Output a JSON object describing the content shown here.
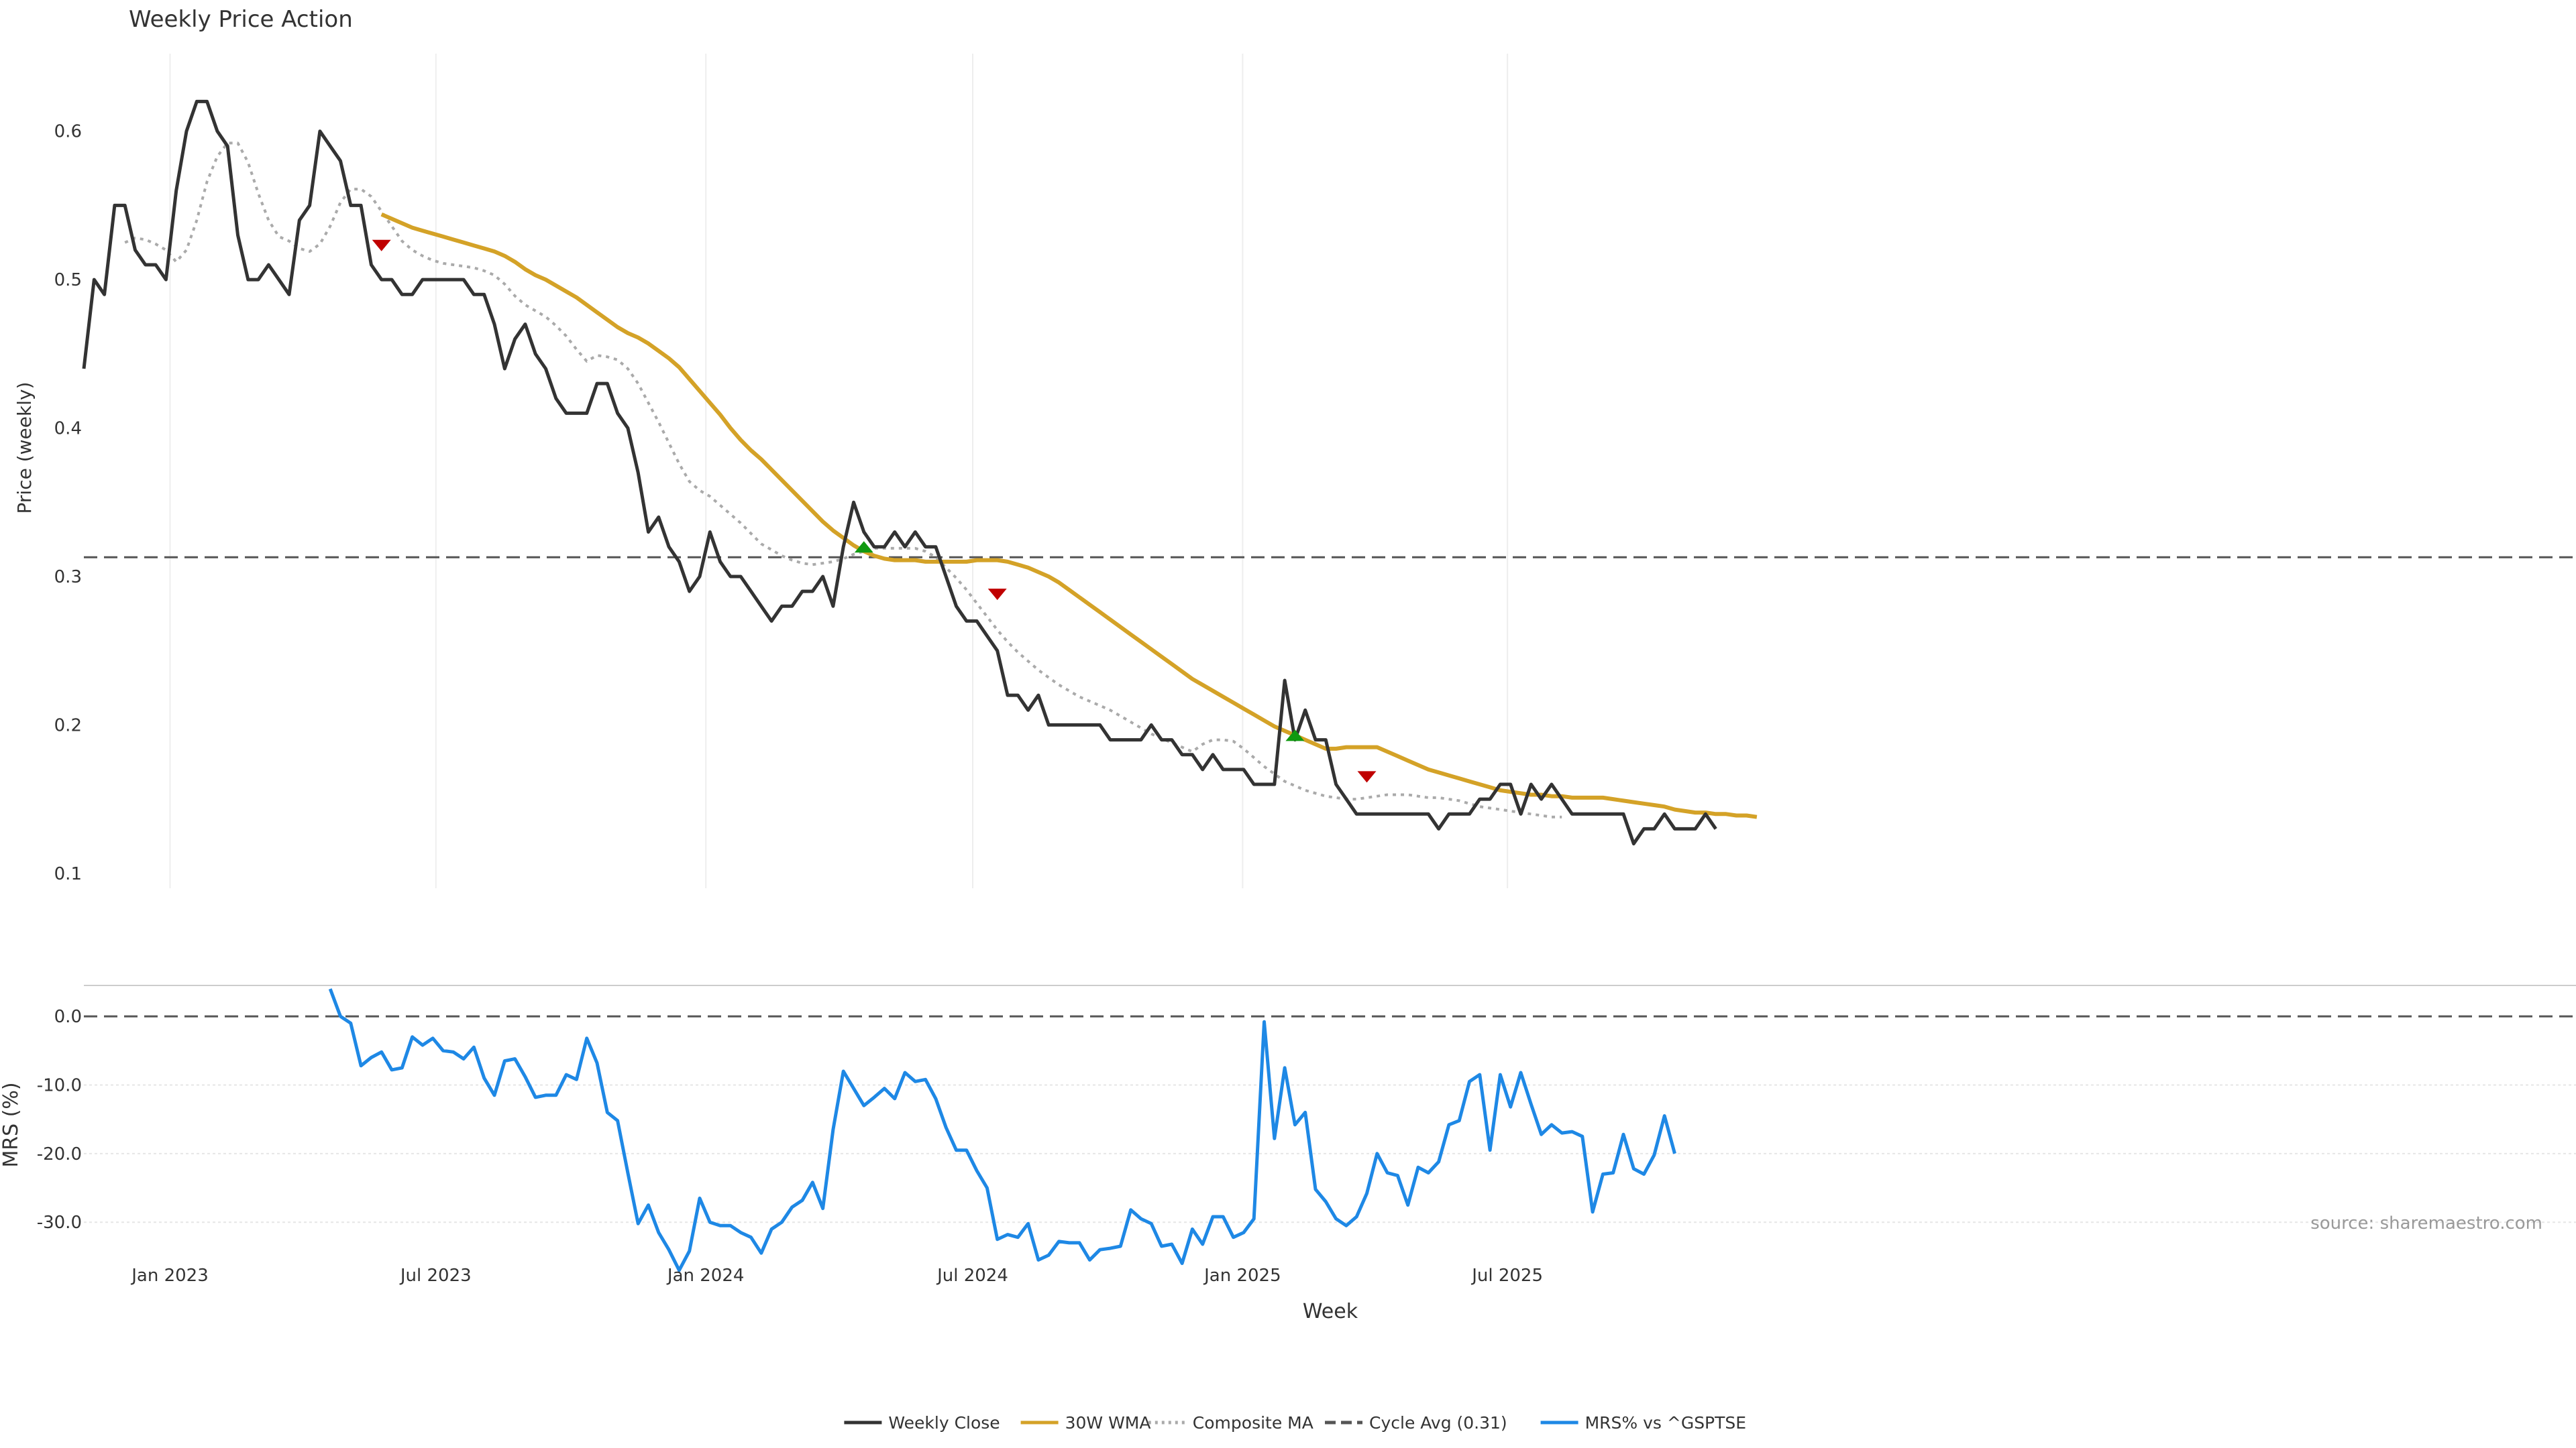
{
  "chart_data": [
    {
      "type": "line",
      "title": "Weekly Price Action",
      "ylabel": "Price (weekly)",
      "xlabel": "",
      "ylim": [
        0.09,
        0.65
      ],
      "yticks": [
        0.1,
        0.2,
        0.3,
        0.4,
        0.5,
        0.6
      ],
      "x_start": "2022-11-07",
      "x_step_days": 7,
      "reference_line": {
        "name": "Cycle Avg (0.31)",
        "value": 0.313,
        "color": "#555555",
        "style": "dashed"
      },
      "series": [
        {
          "name": "Weekly Close",
          "color": "#333333",
          "style": "solid",
          "start_index": 0,
          "values": [
            0.44,
            0.5,
            0.49,
            0.55,
            0.55,
            0.52,
            0.51,
            0.51,
            0.5,
            0.56,
            0.6,
            0.62,
            0.62,
            0.6,
            0.59,
            0.53,
            0.5,
            0.5,
            0.51,
            0.5,
            0.49,
            0.54,
            0.55,
            0.6,
            0.59,
            0.58,
            0.55,
            0.55,
            0.51,
            0.5,
            0.5,
            0.49,
            0.49,
            0.5,
            0.5,
            0.5,
            0.5,
            0.5,
            0.49,
            0.49,
            0.47,
            0.44,
            0.46,
            0.47,
            0.45,
            0.44,
            0.42,
            0.41,
            0.41,
            0.41,
            0.43,
            0.43,
            0.41,
            0.4,
            0.37,
            0.33,
            0.34,
            0.32,
            0.31,
            0.29,
            0.3,
            0.33,
            0.31,
            0.3,
            0.3,
            0.29,
            0.28,
            0.27,
            0.28,
            0.28,
            0.29,
            0.29,
            0.3,
            0.28,
            0.32,
            0.35,
            0.33,
            0.32,
            0.32,
            0.33,
            0.32,
            0.33,
            0.32,
            0.32,
            0.3,
            0.28,
            0.27,
            0.27,
            0.26,
            0.25,
            0.22,
            0.22,
            0.21,
            0.22,
            0.2,
            0.2,
            0.2,
            0.2,
            0.2,
            0.2,
            0.19,
            0.19,
            0.19,
            0.19,
            0.2,
            0.19,
            0.19,
            0.18,
            0.18,
            0.17,
            0.18,
            0.17,
            0.17,
            0.17,
            0.16,
            0.16,
            0.16,
            0.23,
            0.19,
            0.21,
            0.19,
            0.19,
            0.16,
            0.15,
            0.14,
            0.14,
            0.14,
            0.14,
            0.14,
            0.14,
            0.14,
            0.14,
            0.13,
            0.14,
            0.14,
            0.14,
            0.15,
            0.15,
            0.16,
            0.16,
            0.14,
            0.16,
            0.15,
            0.16,
            0.15,
            0.14,
            0.14,
            0.14,
            0.14,
            0.14,
            0.14,
            0.12,
            0.13,
            0.13,
            0.14,
            0.13,
            0.13,
            0.13,
            0.14,
            0.13
          ]
        },
        {
          "name": "30W WMA",
          "color": "#D4A227",
          "style": "solid",
          "start_index": 29,
          "values": [
            0.544,
            0.541,
            0.538,
            0.535,
            0.533,
            0.531,
            0.529,
            0.527,
            0.525,
            0.523,
            0.521,
            0.519,
            0.516,
            0.512,
            0.507,
            0.503,
            0.5,
            0.496,
            0.492,
            0.488,
            0.483,
            0.478,
            0.473,
            0.468,
            0.464,
            0.461,
            0.457,
            0.452,
            0.447,
            0.441,
            0.433,
            0.425,
            0.417,
            0.409,
            0.4,
            0.392,
            0.385,
            0.379,
            0.372,
            0.365,
            0.358,
            0.351,
            0.344,
            0.337,
            0.331,
            0.326,
            0.321,
            0.317,
            0.314,
            0.312,
            0.311,
            0.311,
            0.311,
            0.31,
            0.31,
            0.31,
            0.31,
            0.31,
            0.311,
            0.311,
            0.311,
            0.31,
            0.308,
            0.306,
            0.303,
            0.3,
            0.296,
            0.291,
            0.286,
            0.281,
            0.276,
            0.271,
            0.266,
            0.261,
            0.256,
            0.251,
            0.246,
            0.241,
            0.236,
            0.231,
            0.227,
            0.223,
            0.219,
            0.215,
            0.211,
            0.207,
            0.203,
            0.199,
            0.196,
            0.193,
            0.19,
            0.187,
            0.184,
            0.184,
            0.185,
            0.185,
            0.185,
            0.185,
            0.182,
            0.179,
            0.176,
            0.173,
            0.17,
            0.168,
            0.166,
            0.164,
            0.162,
            0.16,
            0.158,
            0.156,
            0.155,
            0.154,
            0.153,
            0.153,
            0.152,
            0.152,
            0.151,
            0.151,
            0.151,
            0.151,
            0.15,
            0.149,
            0.148,
            0.147,
            0.146,
            0.145,
            0.143,
            0.142,
            0.141,
            0.141,
            0.14,
            0.14,
            0.139,
            0.139,
            0.138
          ]
        },
        {
          "name": "Composite MA",
          "color": "#AAAAAA",
          "style": "dotted",
          "start_index": 4,
          "values": [
            0.525,
            0.528,
            0.527,
            0.524,
            0.52,
            0.512,
            0.52,
            0.54,
            0.566,
            0.583,
            0.592,
            0.592,
            0.579,
            0.558,
            0.54,
            0.529,
            0.526,
            0.521,
            0.519,
            0.524,
            0.536,
            0.552,
            0.561,
            0.561,
            0.556,
            0.546,
            0.536,
            0.526,
            0.52,
            0.516,
            0.513,
            0.511,
            0.51,
            0.509,
            0.508,
            0.506,
            0.503,
            0.497,
            0.489,
            0.483,
            0.479,
            0.475,
            0.469,
            0.462,
            0.453,
            0.445,
            0.449,
            0.448,
            0.446,
            0.44,
            0.43,
            0.417,
            0.404,
            0.39,
            0.376,
            0.364,
            0.358,
            0.354,
            0.348,
            0.342,
            0.336,
            0.329,
            0.322,
            0.318,
            0.314,
            0.311,
            0.309,
            0.308,
            0.309,
            0.31,
            0.312,
            0.315,
            0.317,
            0.319,
            0.319,
            0.319,
            0.319,
            0.319,
            0.317,
            0.313,
            0.306,
            0.299,
            0.291,
            0.282,
            0.273,
            0.264,
            0.256,
            0.249,
            0.243,
            0.237,
            0.232,
            0.227,
            0.223,
            0.219,
            0.216,
            0.213,
            0.21,
            0.206,
            0.202,
            0.198,
            0.194,
            0.191,
            0.188,
            0.185,
            0.182,
            0.187,
            0.19,
            0.19,
            0.189,
            0.184,
            0.178,
            0.172,
            0.167,
            0.162,
            0.159,
            0.156,
            0.154,
            0.152,
            0.151,
            0.15,
            0.15,
            0.151,
            0.152,
            0.153,
            0.153,
            0.153,
            0.152,
            0.151,
            0.151,
            0.15,
            0.149,
            0.147,
            0.145,
            0.144,
            0.143,
            0.142,
            0.141,
            0.14,
            0.139,
            0.138,
            0.138
          ]
        }
      ],
      "signals": [
        {
          "type": "sell",
          "index": 29,
          "value": 0.523,
          "color": "#C00000"
        },
        {
          "type": "buy",
          "index": 76,
          "value": 0.32,
          "color": "#109910"
        },
        {
          "type": "sell",
          "index": 89,
          "value": 0.288,
          "color": "#C00000"
        },
        {
          "type": "buy",
          "index": 118,
          "value": 0.193,
          "color": "#109910"
        },
        {
          "type": "sell",
          "index": 125,
          "value": 0.165,
          "color": "#C00000"
        }
      ]
    },
    {
      "type": "line",
      "title": "",
      "ylabel": "MRS (%)",
      "xlabel": "Week",
      "ylim": [
        -37.5,
        4.5
      ],
      "yticks": [
        0.0,
        -10.0,
        -20.0,
        -30.0
      ],
      "ytick_labels": [
        "0.0",
        "-10.0",
        "-20.0",
        "-30.0"
      ],
      "zero_line": {
        "value": 0,
        "style": "dashed",
        "color": "#555555"
      },
      "xticks": [
        {
          "label": "Jan 2023",
          "index": 8.4
        },
        {
          "label": "Jul 2023",
          "index": 34.3
        },
        {
          "label": "Jan 2024",
          "index": 60.6
        },
        {
          "label": "Jul 2024",
          "index": 86.6
        },
        {
          "label": "Jan 2025",
          "index": 112.9
        },
        {
          "label": "Jul 2025",
          "index": 138.7
        }
      ],
      "series": [
        {
          "name": "MRS% vs ^GSPTSE",
          "color": "#1E88E5",
          "style": "solid",
          "start_index": 24,
          "values": [
            4.0,
            0.0,
            -1.0,
            -7.2,
            -6.0,
            -5.2,
            -7.8,
            -7.5,
            -3.0,
            -4.2,
            -3.2,
            -5.0,
            -5.2,
            -6.2,
            -4.5,
            -9.0,
            -11.5,
            -6.5,
            -6.2,
            -8.8,
            -11.8,
            -11.5,
            -11.5,
            -8.5,
            -9.2,
            -3.2,
            -6.8,
            -14.0,
            -15.2,
            -22.8,
            -30.2,
            -27.5,
            -31.5,
            -34.0,
            -37.0,
            -34.2,
            -26.5,
            -30.0,
            -30.5,
            -30.5,
            -31.5,
            -32.2,
            -34.5,
            -31.0,
            -30.0,
            -27.8,
            -26.8,
            -24.2,
            -28.0,
            -16.5,
            -8.0,
            -10.5,
            -13.0,
            -11.8,
            -10.5,
            -12.0,
            -8.2,
            -9.5,
            -9.2,
            -12.0,
            -16.2,
            -19.5,
            -19.5,
            -22.5,
            -25.0,
            -32.5,
            -31.8,
            -32.2,
            -30.2,
            -35.5,
            -34.8,
            -32.8,
            -33.0,
            -33.0,
            -35.5,
            -34.0,
            -33.8,
            -33.5,
            -28.2,
            -29.5,
            -30.2,
            -33.5,
            -33.2,
            -36.0,
            -31.0,
            -33.2,
            -29.2,
            -29.2,
            -32.2,
            -31.5,
            -29.5,
            -0.8,
            -17.8,
            -7.5,
            -15.8,
            -14.0,
            -25.2,
            -27.0,
            -29.5,
            -30.5,
            -29.2,
            -25.8,
            -20.0,
            -22.8,
            -23.2,
            -27.5,
            -22.0,
            -22.8,
            -21.2,
            -15.8,
            -15.2,
            -9.5,
            -8.5,
            -19.5,
            -8.5,
            -13.2,
            -8.2,
            -12.8,
            -17.2,
            -15.8,
            -17.0,
            -16.8,
            -17.5,
            -28.5,
            -23.0,
            -22.8,
            -17.2,
            -22.2,
            -23.0,
            -20.2,
            -14.5,
            -20.0
          ]
        }
      ],
      "source_note": "source: sharemaestro.com"
    }
  ],
  "legend": {
    "placement": "bottom-center",
    "items": [
      {
        "label": "Weekly Close",
        "color": "#333333",
        "style": "solid"
      },
      {
        "label": "30W WMA",
        "color": "#D4A227",
        "style": "solid"
      },
      {
        "label": "Composite MA",
        "color": "#AAAAAA",
        "style": "dotted"
      },
      {
        "label": "Cycle Avg (0.31)",
        "color": "#555555",
        "style": "dashed"
      },
      {
        "label": "MRS% vs ^GSPTSE",
        "color": "#1E88E5",
        "style": "solid"
      }
    ]
  }
}
